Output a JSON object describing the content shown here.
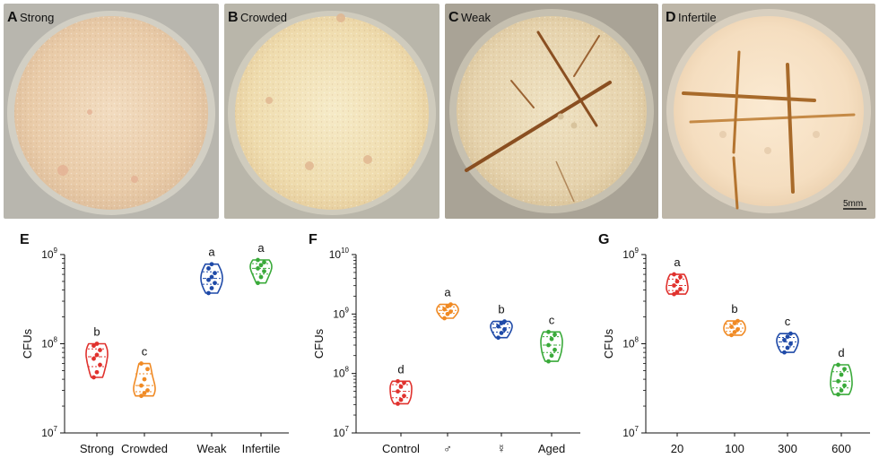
{
  "photos": [
    {
      "letter": "A",
      "title": "Strong"
    },
    {
      "letter": "B",
      "title": "Crowded"
    },
    {
      "letter": "C",
      "title": "Weak"
    },
    {
      "letter": "D",
      "title": "Infertile"
    }
  ],
  "scale_bar": "5mm",
  "colors": {
    "red": "#e0322e",
    "orange": "#f08a24",
    "blue": "#1f4aa8",
    "green": "#3aaa3a"
  },
  "chart_data": [
    {
      "type": "violin",
      "panel": "E",
      "ylabel": "CFUs",
      "yscale": "log",
      "ylim": [
        10000000.0,
        1000000000.0
      ],
      "ytick_exponents": [
        7,
        8,
        9
      ],
      "categories": [
        "Strong",
        "Crowded",
        "Weak",
        "Infertile"
      ],
      "letters": [
        "b",
        "c",
        "a",
        "a"
      ],
      "colors": [
        "red",
        "orange",
        "blue",
        "green"
      ],
      "series": [
        {
          "values": [
            42000000,
            48000000,
            58000000,
            68000000,
            75000000,
            85000000,
            95000000,
            100000000
          ]
        },
        {
          "values": [
            26000000,
            28000000,
            30000000,
            34000000,
            40000000,
            52000000,
            60000000
          ]
        },
        {
          "values": [
            370000000,
            420000000,
            480000000,
            520000000,
            560000000,
            620000000,
            700000000,
            780000000
          ]
        },
        {
          "values": [
            480000000,
            560000000,
            650000000,
            700000000,
            760000000,
            820000000,
            870000000
          ]
        }
      ]
    },
    {
      "type": "violin",
      "panel": "F",
      "ylabel": "CFUs",
      "yscale": "log",
      "ylim": [
        10000000.0,
        10000000000.0
      ],
      "ytick_exponents": [
        7,
        8,
        9,
        10
      ],
      "categories": [
        "Control",
        "♂",
        "☿",
        "Aged"
      ],
      "letters": [
        "d",
        "a",
        "b",
        "c"
      ],
      "colors": [
        "red",
        "orange",
        "blue",
        "green"
      ],
      "series": [
        {
          "values": [
            31000000,
            36000000,
            42000000,
            50000000,
            60000000,
            70000000,
            74000000
          ]
        },
        {
          "values": [
            850000000,
            1000000000,
            1100000000,
            1200000000,
            1350000000,
            1450000000
          ]
        },
        {
          "values": [
            400000000,
            480000000,
            550000000,
            620000000,
            700000000,
            750000000
          ]
        },
        {
          "values": [
            160000000,
            200000000,
            250000000,
            300000000,
            380000000,
            450000000,
            500000000
          ]
        }
      ]
    },
    {
      "type": "violin",
      "panel": "G",
      "ylabel": "CFUs",
      "yscale": "log",
      "ylim": [
        10000000.0,
        1000000000.0
      ],
      "ytick_exponents": [
        7,
        8,
        9
      ],
      "categories": [
        "20",
        "100",
        "300",
        "600"
      ],
      "letters": [
        "a",
        "b",
        "c",
        "d"
      ],
      "colors": [
        "red",
        "orange",
        "blue",
        "green"
      ],
      "series": [
        {
          "values": [
            360000000,
            380000000,
            410000000,
            450000000,
            500000000,
            560000000,
            600000000
          ]
        },
        {
          "values": [
            125000000,
            135000000,
            145000000,
            155000000,
            170000000,
            180000000
          ]
        },
        {
          "values": [
            80000000,
            90000000,
            100000000,
            110000000,
            120000000,
            130000000
          ]
        },
        {
          "values": [
            27000000,
            30000000,
            34000000,
            38000000,
            45000000,
            52000000,
            58000000
          ]
        }
      ]
    }
  ]
}
